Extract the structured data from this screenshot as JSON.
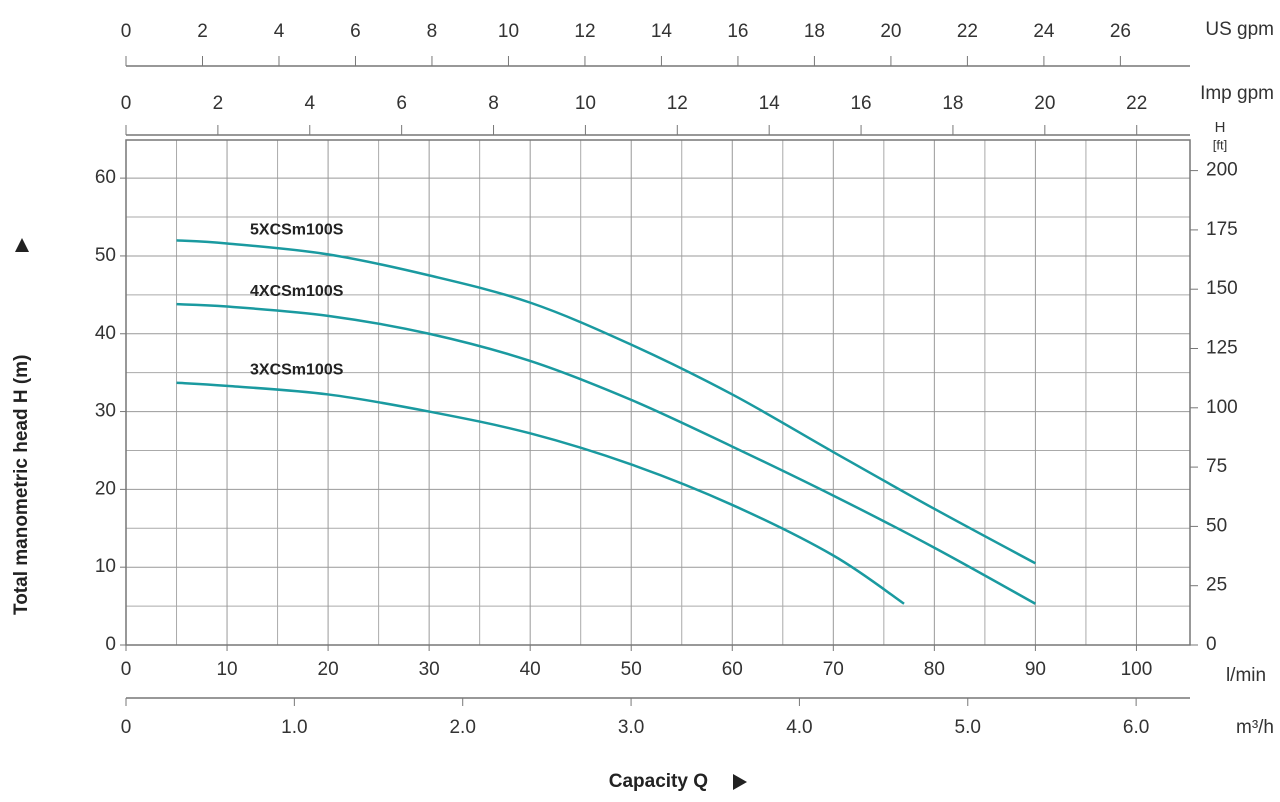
{
  "chart_data": {
    "type": "line",
    "xlabel": "Capacity Q",
    "ylabel": "Total manometric head H (m)",
    "xunit": "l/min",
    "y2label": [
      "H",
      "[ft]"
    ],
    "xlim": [
      0,
      105.3
    ],
    "ylim": [
      0,
      64.9
    ],
    "y2lim": [
      0,
      212.9
    ],
    "xticks": [
      0,
      10,
      20,
      30,
      40,
      50,
      60,
      70,
      80,
      90,
      100
    ],
    "yticks": [
      0,
      10,
      20,
      30,
      40,
      50,
      60
    ],
    "y2ticks": [
      0,
      25,
      50,
      75,
      100,
      125,
      150,
      175,
      200
    ],
    "minor_xticks": [
      5,
      15,
      25,
      35,
      45,
      55,
      65,
      75,
      85,
      95
    ],
    "minor_yticks": [
      5,
      15,
      25,
      35,
      45,
      55
    ],
    "grid": true,
    "secondary_x_axes": [
      {
        "label": "US gpm",
        "position": "top",
        "lim": [
          0,
          27.82
        ],
        "ticks": [
          0,
          2,
          4,
          6,
          8,
          10,
          12,
          14,
          16,
          18,
          20,
          22,
          24,
          26
        ]
      },
      {
        "label": "Imp gpm",
        "position": "top",
        "lim": [
          0,
          23.16
        ],
        "ticks": [
          0,
          2,
          4,
          6,
          8,
          10,
          12,
          14,
          16,
          18,
          20,
          22
        ]
      },
      {
        "label": "m³/h",
        "position": "bottom",
        "lim": [
          0,
          6.32
        ],
        "ticks": [
          0,
          {
            "value": 1,
            "label": "1.0"
          },
          {
            "value": 2,
            "label": "2.0"
          },
          {
            "value": 3,
            "label": "3.0"
          },
          {
            "value": 4,
            "label": "4.0"
          },
          {
            "value": 5,
            "label": "5.0"
          },
          {
            "value": 6,
            "label": "6.0"
          }
        ]
      }
    ],
    "series": [
      {
        "name": "5XCSm100S",
        "color": "#1a9aa0",
        "x": [
          5,
          10,
          20,
          30,
          40,
          50,
          60,
          70,
          80,
          90
        ],
        "values": [
          52,
          51.6,
          50.2,
          47.5,
          44,
          38.6,
          32.2,
          24.8,
          17.5,
          10.5
        ]
      },
      {
        "name": "4XCSm100S",
        "color": "#1a9aa0",
        "x": [
          5,
          10,
          20,
          30,
          40,
          50,
          60,
          70,
          80,
          90
        ],
        "values": [
          43.8,
          43.5,
          42.3,
          40,
          36.5,
          31.5,
          25.5,
          19.2,
          12.5,
          5.3
        ]
      },
      {
        "name": "3XCSm100S",
        "color": "#1a9aa0",
        "x": [
          5,
          10,
          20,
          30,
          40,
          50,
          60,
          70,
          77
        ],
        "values": [
          33.7,
          33.3,
          32.2,
          30,
          27.2,
          23.2,
          18,
          11.5,
          5.3
        ]
      }
    ]
  }
}
